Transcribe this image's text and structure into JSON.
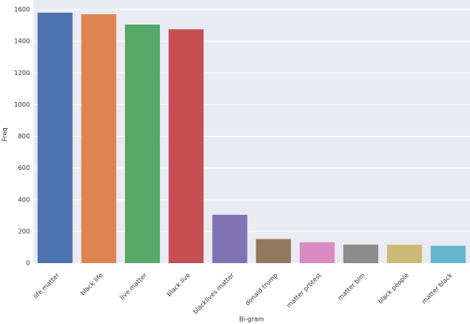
{
  "chart_data": {
    "type": "bar",
    "xlabel": "Bi-gram",
    "ylabel": "Freq",
    "categories": [
      "life matter",
      "black life",
      "live matter",
      "black live",
      "blacklives matter",
      "donald trump",
      "matter protest",
      "matter blm",
      "black people",
      "matter black"
    ],
    "values": [
      1580,
      1570,
      1505,
      1475,
      305,
      152,
      132,
      117,
      116,
      110
    ],
    "colors": [
      "#4c72b0",
      "#dd8452",
      "#55a868",
      "#c44e52",
      "#8172b3",
      "#937860",
      "#da8bc3",
      "#8c8c8c",
      "#ccb974",
      "#64b5cd"
    ],
    "ylim": [
      0,
      1660
    ],
    "yticks": [
      0,
      200,
      400,
      600,
      800,
      1000,
      1200,
      1400,
      1600
    ],
    "grid": true
  }
}
